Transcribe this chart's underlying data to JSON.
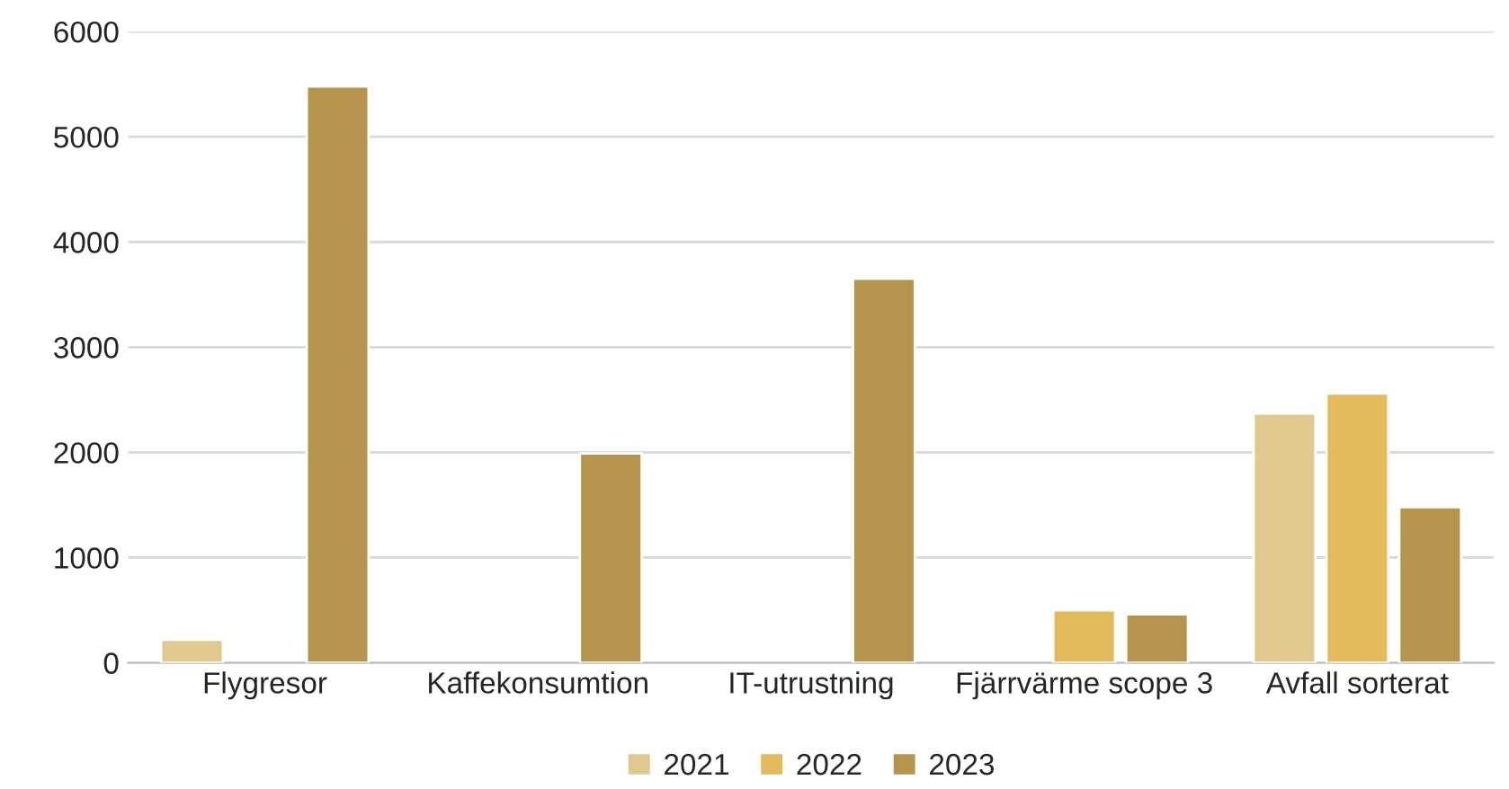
{
  "chart_data": {
    "type": "bar",
    "categories": [
      "Flygresor",
      "Kaffekonsumtion",
      "IT-utrustning",
      "Fjärrvärme scope 3",
      "Avfall sorterat"
    ],
    "series": [
      {
        "name": "2021",
        "color": "#dfc98e",
        "values": [
          220,
          null,
          null,
          null,
          2370
        ]
      },
      {
        "name": "2022",
        "color": "#e4b95a",
        "values": [
          null,
          null,
          null,
          500,
          2560
        ]
      },
      {
        "name": "2023",
        "color": "#b5954b",
        "values": [
          5480,
          1990,
          3650,
          460,
          1480
        ]
      }
    ],
    "ylim": [
      0,
      6000
    ],
    "yticks": [
      0,
      1000,
      2000,
      3000,
      4000,
      5000,
      6000
    ],
    "grid": "y",
    "legend": "bottom"
  }
}
